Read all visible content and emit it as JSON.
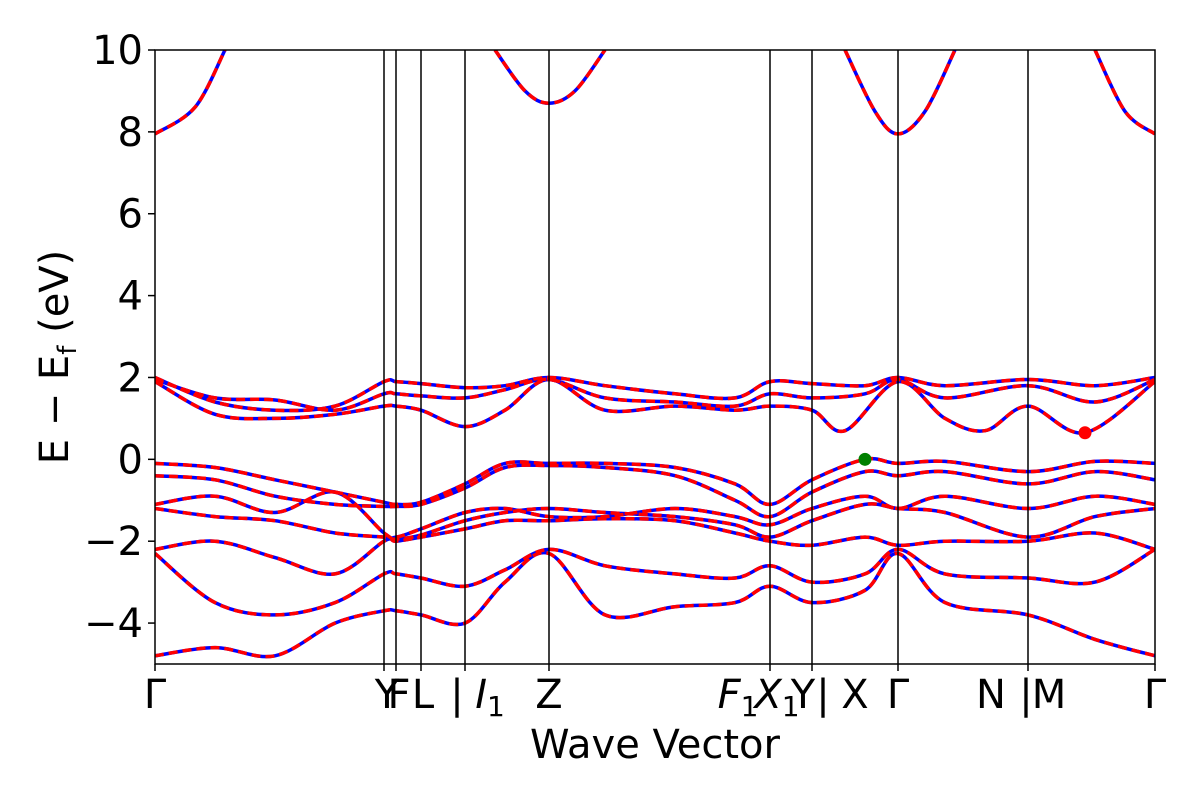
{
  "chart_data": {
    "type": "line",
    "title": "",
    "xlabel": "Wave Vector",
    "ylabel": "E − E",
    "ylabel_sub": "f",
    "ylabel_unit": " (eV)",
    "ylim": [
      -5,
      10
    ],
    "yticks": [
      -4,
      -2,
      0,
      2,
      4,
      6,
      8,
      10
    ],
    "ytick_labels": [
      "−4",
      "−2",
      "0",
      "2",
      "4",
      "6",
      "8",
      "10"
    ],
    "grid": false,
    "xlim": [
      0,
      1
    ],
    "kpath_positions": [
      0.0,
      0.229,
      0.241,
      0.266,
      0.31,
      0.394,
      0.615,
      0.657,
      0.743,
      0.873,
      1.0
    ],
    "kpath_ticks": [
      {
        "x": 0.0,
        "label": "Γ"
      },
      {
        "x": 0.232,
        "label": "Y"
      },
      {
        "x": 0.244,
        "label": "F"
      },
      {
        "x": 0.268,
        "label": "L"
      },
      {
        "x": 0.302,
        "label": "|"
      },
      {
        "x": 0.335,
        "label": "I",
        "sub": "1",
        "italic": true
      },
      {
        "x": 0.394,
        "label": "Z"
      },
      {
        "x": 0.583,
        "label": "F",
        "sub": "1",
        "italic": true
      },
      {
        "x": 0.622,
        "label": "X",
        "sub": "1",
        "italic": true
      },
      {
        "x": 0.648,
        "label": "Y"
      },
      {
        "x": 0.668,
        "label": "|"
      },
      {
        "x": 0.7,
        "label": "X"
      },
      {
        "x": 0.743,
        "label": "Γ"
      },
      {
        "x": 0.836,
        "label": "N"
      },
      {
        "x": 0.871,
        "label": "|"
      },
      {
        "x": 0.894,
        "label": "M"
      },
      {
        "x": 1.0,
        "label": "Γ"
      }
    ],
    "series": [
      {
        "color": "#0000ff",
        "style": "solid",
        "bands": [
          [
            [
              0.0,
              -0.1
            ],
            [
              0.06,
              -0.2
            ],
            [
              0.12,
              -0.5
            ],
            [
              0.18,
              -0.8
            ],
            [
              0.229,
              -1.05
            ],
            [
              0.241,
              -1.1
            ],
            [
              0.266,
              -1.05
            ],
            [
              0.31,
              -0.6
            ],
            [
              0.35,
              -0.1
            ],
            [
              0.394,
              -0.1
            ],
            [
              0.45,
              -0.1
            ],
            [
              0.52,
              -0.2
            ],
            [
              0.58,
              -0.6
            ],
            [
              0.615,
              -1.1
            ],
            [
              0.657,
              -0.5
            ],
            [
              0.71,
              0.0
            ],
            [
              0.743,
              -0.1
            ],
            [
              0.79,
              -0.05
            ],
            [
              0.873,
              -0.3
            ],
            [
              0.94,
              -0.05
            ],
            [
              1.0,
              -0.1
            ]
          ],
          [
            [
              0.0,
              -0.4
            ],
            [
              0.06,
              -0.5
            ],
            [
              0.12,
              -0.9
            ],
            [
              0.18,
              -1.1
            ],
            [
              0.229,
              -1.15
            ],
            [
              0.241,
              -1.15
            ],
            [
              0.266,
              -1.1
            ],
            [
              0.31,
              -0.7
            ],
            [
              0.35,
              -0.2
            ],
            [
              0.394,
              -0.15
            ],
            [
              0.45,
              -0.2
            ],
            [
              0.52,
              -0.4
            ],
            [
              0.58,
              -1.0
            ],
            [
              0.615,
              -1.4
            ],
            [
              0.657,
              -0.8
            ],
            [
              0.71,
              -0.3
            ],
            [
              0.743,
              -0.4
            ],
            [
              0.79,
              -0.3
            ],
            [
              0.873,
              -0.6
            ],
            [
              0.94,
              -0.3
            ],
            [
              1.0,
              -0.5
            ]
          ],
          [
            [
              0.0,
              -1.1
            ],
            [
              0.06,
              -0.9
            ],
            [
              0.12,
              -1.3
            ],
            [
              0.18,
              -0.8
            ],
            [
              0.229,
              -1.8
            ],
            [
              0.241,
              -1.9
            ],
            [
              0.266,
              -1.7
            ],
            [
              0.31,
              -1.3
            ],
            [
              0.35,
              -1.2
            ],
            [
              0.394,
              -1.4
            ],
            [
              0.45,
              -1.4
            ],
            [
              0.52,
              -1.2
            ],
            [
              0.58,
              -1.4
            ],
            [
              0.615,
              -1.6
            ],
            [
              0.657,
              -1.2
            ],
            [
              0.71,
              -0.9
            ],
            [
              0.743,
              -1.2
            ],
            [
              0.79,
              -0.9
            ],
            [
              0.873,
              -1.2
            ],
            [
              0.94,
              -0.9
            ],
            [
              1.0,
              -1.1
            ]
          ],
          [
            [
              0.0,
              -1.2
            ],
            [
              0.06,
              -1.4
            ],
            [
              0.12,
              -1.5
            ],
            [
              0.18,
              -1.8
            ],
            [
              0.229,
              -1.9
            ],
            [
              0.241,
              -1.95
            ],
            [
              0.266,
              -1.85
            ],
            [
              0.31,
              -1.5
            ],
            [
              0.35,
              -1.3
            ],
            [
              0.394,
              -1.2
            ],
            [
              0.45,
              -1.3
            ],
            [
              0.52,
              -1.4
            ],
            [
              0.58,
              -1.6
            ],
            [
              0.615,
              -1.9
            ],
            [
              0.657,
              -1.5
            ],
            [
              0.71,
              -1.1
            ],
            [
              0.743,
              -1.2
            ],
            [
              0.79,
              -1.3
            ],
            [
              0.873,
              -1.9
            ],
            [
              0.94,
              -1.4
            ],
            [
              1.0,
              -1.2
            ]
          ],
          [
            [
              0.0,
              -2.2
            ],
            [
              0.06,
              -2.0
            ],
            [
              0.12,
              -2.4
            ],
            [
              0.18,
              -2.8
            ],
            [
              0.229,
              -2.0
            ],
            [
              0.241,
              -2.0
            ],
            [
              0.266,
              -1.9
            ],
            [
              0.31,
              -1.7
            ],
            [
              0.35,
              -1.5
            ],
            [
              0.394,
              -1.5
            ],
            [
              0.45,
              -1.45
            ],
            [
              0.52,
              -1.5
            ],
            [
              0.58,
              -1.8
            ],
            [
              0.615,
              -2.0
            ],
            [
              0.657,
              -2.1
            ],
            [
              0.71,
              -1.9
            ],
            [
              0.743,
              -2.1
            ],
            [
              0.79,
              -2.0
            ],
            [
              0.873,
              -2.0
            ],
            [
              0.94,
              -1.8
            ],
            [
              1.0,
              -2.2
            ]
          ],
          [
            [
              0.0,
              -2.3
            ],
            [
              0.06,
              -3.5
            ],
            [
              0.12,
              -3.8
            ],
            [
              0.18,
              -3.5
            ],
            [
              0.229,
              -2.8
            ],
            [
              0.241,
              -2.8
            ],
            [
              0.266,
              -2.9
            ],
            [
              0.31,
              -3.1
            ],
            [
              0.35,
              -2.7
            ],
            [
              0.394,
              -2.2
            ],
            [
              0.45,
              -2.6
            ],
            [
              0.52,
              -2.8
            ],
            [
              0.58,
              -2.9
            ],
            [
              0.615,
              -2.6
            ],
            [
              0.657,
              -3.0
            ],
            [
              0.71,
              -2.8
            ],
            [
              0.743,
              -2.2
            ],
            [
              0.79,
              -2.8
            ],
            [
              0.873,
              -2.9
            ],
            [
              0.94,
              -3.0
            ],
            [
              1.0,
              -2.2
            ]
          ],
          [
            [
              0.0,
              -4.8
            ],
            [
              0.06,
              -4.6
            ],
            [
              0.12,
              -4.8
            ],
            [
              0.18,
              -4.0
            ],
            [
              0.229,
              -3.7
            ],
            [
              0.241,
              -3.7
            ],
            [
              0.266,
              -3.8
            ],
            [
              0.31,
              -4.0
            ],
            [
              0.35,
              -3.0
            ],
            [
              0.394,
              -2.3
            ],
            [
              0.45,
              -3.8
            ],
            [
              0.52,
              -3.6
            ],
            [
              0.58,
              -3.5
            ],
            [
              0.615,
              -3.1
            ],
            [
              0.657,
              -3.5
            ],
            [
              0.71,
              -3.2
            ],
            [
              0.743,
              -2.3
            ],
            [
              0.79,
              -3.5
            ],
            [
              0.873,
              -3.8
            ],
            [
              0.94,
              -4.4
            ],
            [
              1.0,
              -4.8
            ]
          ],
          [
            [
              0.0,
              7.95
            ],
            [
              0.04,
              8.6
            ],
            [
              0.07,
              10.0
            ]
          ],
          [
            [
              0.34,
              10.0
            ],
            [
              0.37,
              9.0
            ],
            [
              0.394,
              8.7
            ],
            [
              0.42,
              9.0
            ],
            [
              0.45,
              10.0
            ]
          ],
          [
            [
              0.69,
              10.0
            ],
            [
              0.72,
              8.5
            ],
            [
              0.743,
              7.95
            ],
            [
              0.77,
              8.5
            ],
            [
              0.8,
              10.0
            ]
          ],
          [
            [
              0.94,
              10.0
            ],
            [
              0.97,
              8.5
            ],
            [
              1.0,
              7.95
            ]
          ],
          [
            [
              0.0,
              2.0
            ],
            [
              0.06,
              1.4
            ],
            [
              0.12,
              1.2
            ],
            [
              0.18,
              1.3
            ],
            [
              0.229,
              1.9
            ],
            [
              0.241,
              1.9
            ],
            [
              0.266,
              1.85
            ],
            [
              0.31,
              1.75
            ],
            [
              0.35,
              1.8
            ],
            [
              0.394,
              2.0
            ],
            [
              0.45,
              1.8
            ],
            [
              0.52,
              1.6
            ],
            [
              0.58,
              1.5
            ],
            [
              0.615,
              1.9
            ],
            [
              0.657,
              1.85
            ],
            [
              0.71,
              1.8
            ],
            [
              0.743,
              2.0
            ],
            [
              0.79,
              1.8
            ],
            [
              0.873,
              1.95
            ],
            [
              0.94,
              1.8
            ],
            [
              1.0,
              2.0
            ]
          ],
          [
            [
              0.0,
              1.95
            ],
            [
              0.06,
              1.5
            ],
            [
              0.12,
              1.45
            ],
            [
              0.18,
              1.2
            ],
            [
              0.229,
              1.6
            ],
            [
              0.241,
              1.6
            ],
            [
              0.266,
              1.55
            ],
            [
              0.31,
              1.5
            ],
            [
              0.35,
              1.7
            ],
            [
              0.394,
              1.95
            ],
            [
              0.45,
              1.5
            ],
            [
              0.52,
              1.4
            ],
            [
              0.58,
              1.3
            ],
            [
              0.615,
              1.6
            ],
            [
              0.657,
              1.5
            ],
            [
              0.71,
              1.6
            ],
            [
              0.743,
              1.95
            ],
            [
              0.79,
              1.5
            ],
            [
              0.873,
              1.8
            ],
            [
              0.94,
              1.4
            ],
            [
              1.0,
              1.95
            ]
          ],
          [
            [
              0.0,
              1.9
            ],
            [
              0.06,
              1.1
            ],
            [
              0.12,
              1.0
            ],
            [
              0.18,
              1.1
            ],
            [
              0.229,
              1.3
            ],
            [
              0.241,
              1.3
            ],
            [
              0.266,
              1.2
            ],
            [
              0.31,
              0.8
            ],
            [
              0.35,
              1.2
            ],
            [
              0.394,
              1.95
            ],
            [
              0.45,
              1.2
            ],
            [
              0.52,
              1.3
            ],
            [
              0.58,
              1.2
            ],
            [
              0.615,
              1.3
            ],
            [
              0.657,
              1.2
            ],
            [
              0.69,
              0.7
            ],
            [
              0.743,
              1.9
            ],
            [
              0.79,
              1.0
            ],
            [
              0.83,
              0.7
            ],
            [
              0.873,
              1.3
            ],
            [
              0.93,
              0.65
            ],
            [
              1.0,
              1.9
            ]
          ]
        ]
      },
      {
        "color": "#ff0000",
        "style": "dashed",
        "same_as": 0
      }
    ],
    "markers": [
      {
        "x": 0.71,
        "y": 0.0,
        "color": "#008000"
      },
      {
        "x": 0.93,
        "y": 0.65,
        "color": "#ff0000"
      }
    ]
  }
}
